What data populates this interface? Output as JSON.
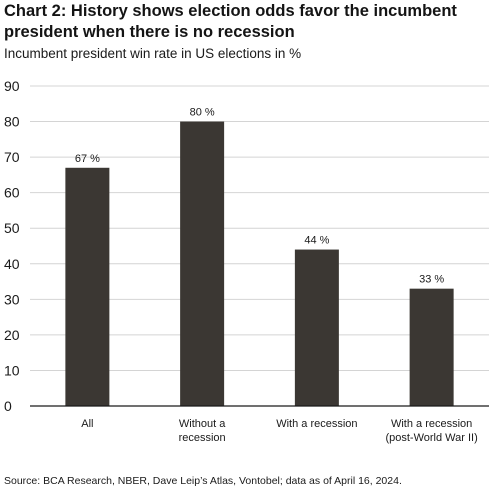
{
  "chart_data": {
    "type": "bar",
    "title": "Chart 2: History shows election odds favor the incumbent president when there is no recession",
    "subtitle": "Incumbent president win rate in US elections in %",
    "categories": [
      [
        "All"
      ],
      [
        "Without a",
        "recession"
      ],
      [
        "With a recession"
      ],
      [
        "With a recession",
        "(post-World War II)"
      ]
    ],
    "values": [
      67,
      80,
      44,
      33
    ],
    "data_labels": [
      "67 %",
      "80 %",
      "44 %",
      "33 %"
    ],
    "ylim": [
      0,
      90
    ],
    "yticks": [
      0,
      10,
      20,
      30,
      40,
      50,
      60,
      70,
      80,
      90
    ],
    "xlabel": "",
    "ylabel": "",
    "grid": true,
    "bar_color": "#3b3733",
    "grid_color": "#d4d4d4",
    "axis_color": "#1a1a1a"
  },
  "source": "Source: BCA Research, NBER, Dave Leip’s Atlas, Vontobel; data as of April 16, 2024."
}
